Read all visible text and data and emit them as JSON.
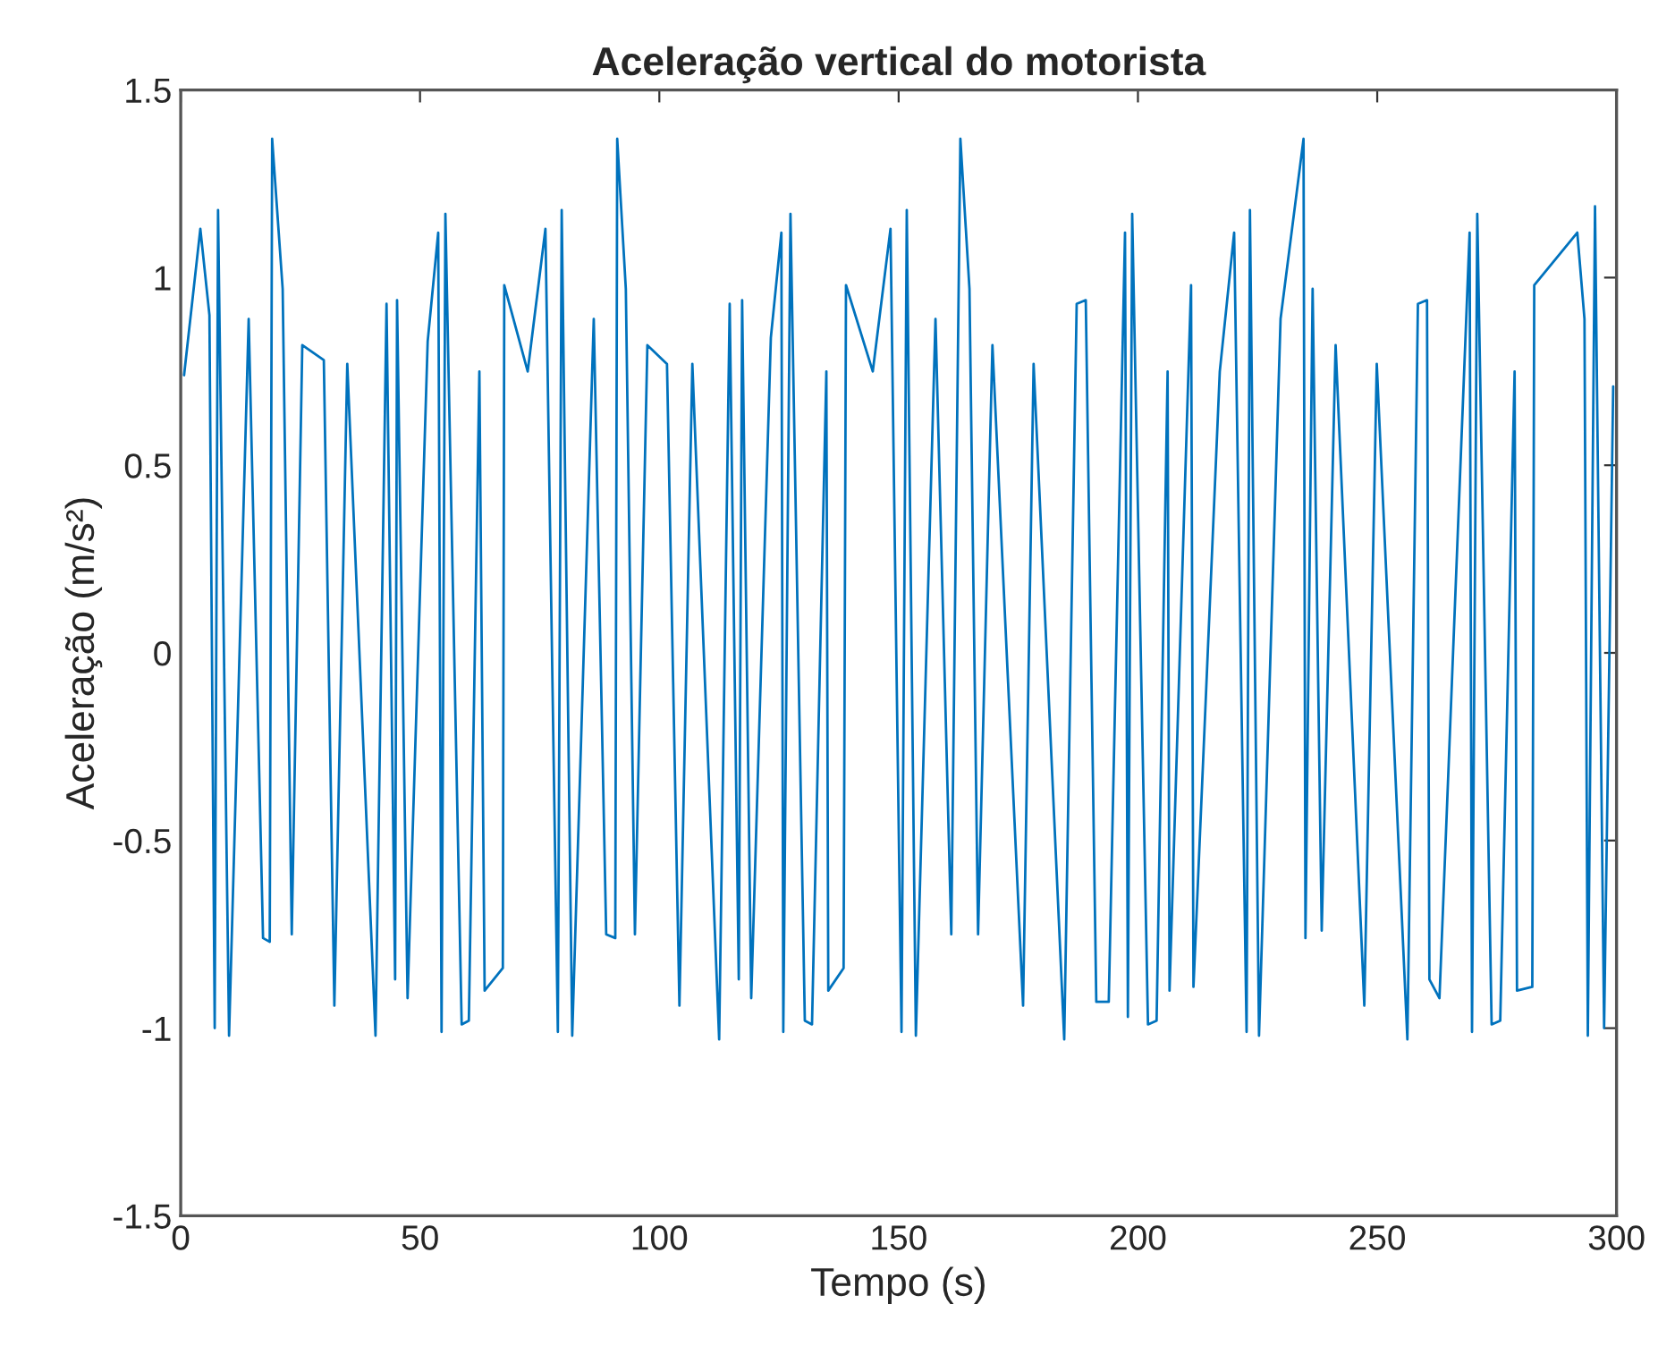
{
  "chart_data": {
    "type": "line",
    "title": "Aceleração vertical do motorista",
    "xlabel": "Tempo (s)",
    "ylabel": "Aceleração (m/s²)",
    "xlim": [
      0,
      300
    ],
    "xticks": [
      0,
      50,
      100,
      150,
      200,
      250,
      300
    ],
    "ylim": [
      -1.5,
      1.5
    ],
    "yticks": [
      -1.5,
      -1,
      -0.5,
      0,
      0.5,
      1,
      1.5
    ],
    "grid": false,
    "marker": "none",
    "line_style": "solid",
    "series": [
      {
        "color": "#0072bd",
        "x": [
          0.7,
          4.1,
          6.0,
          7.1,
          7.8,
          10.1,
          14.2,
          17.2,
          18.6,
          19.1,
          21.3,
          23.2,
          25.4,
          29.9,
          32.1,
          34.8,
          40.7,
          43.0,
          44.8,
          45.2,
          47.4,
          51.6,
          53.8,
          54.5,
          55.3,
          58.7,
          60.2,
          62.4,
          63.5,
          67.3,
          67.6,
          72.5,
          76.2,
          78.8,
          79.6,
          81.8,
          86.3,
          88.9,
          90.8,
          91.2,
          93.0,
          94.9,
          97.5,
          101.6,
          104.2,
          106.9,
          112.5,
          114.7,
          116.6,
          117.3,
          119.2,
          123.3,
          125.5,
          125.9,
          127.4,
          130.4,
          131.9,
          134.9,
          135.3,
          138.5,
          139.0,
          144.6,
          148.3,
          150.6,
          151.7,
          153.6,
          157.7,
          161.0,
          162.9,
          164.8,
          166.6,
          169.6,
          176.0,
          178.2,
          184.6,
          187.2,
          189.1,
          191.3,
          193.9,
          197.3,
          197.9,
          198.8,
          202.1,
          203.9,
          206.2,
          206.6,
          211.1,
          211.6,
          217.1,
          220.1,
          222.7,
          223.4,
          225.3,
          229.8,
          234.6,
          235.0,
          236.5,
          238.4,
          241.3,
          247.3,
          249.9,
          256.3,
          258.5,
          260.4,
          260.9,
          263.0,
          269.3,
          269.8,
          270.9,
          273.9,
          275.7,
          278.7,
          279.2,
          282.4,
          282.8,
          291.8,
          293.3,
          294.0,
          295.5,
          297.4,
          299.3
        ],
        "values": [
          0.74,
          1.13,
          0.9,
          -1.0,
          1.18,
          -1.02,
          0.89,
          -0.76,
          -0.77,
          1.37,
          0.97,
          -0.75,
          0.82,
          0.78,
          -0.94,
          0.77,
          -1.02,
          0.93,
          -0.87,
          0.94,
          -0.92,
          0.83,
          1.12,
          -1.01,
          1.17,
          -0.99,
          -0.98,
          0.75,
          -0.9,
          -0.84,
          0.98,
          0.75,
          1.13,
          -1.01,
          1.18,
          -1.02,
          0.89,
          -0.75,
          -0.76,
          1.37,
          0.97,
          -0.75,
          0.82,
          0.77,
          -0.94,
          0.77,
          -1.03,
          0.93,
          -0.87,
          0.94,
          -0.92,
          0.84,
          1.12,
          -1.01,
          1.17,
          -0.98,
          -0.99,
          0.75,
          -0.9,
          -0.84,
          0.98,
          0.75,
          1.13,
          -1.01,
          1.18,
          -1.02,
          0.89,
          -0.75,
          1.37,
          0.97,
          -0.75,
          0.82,
          -0.94,
          0.77,
          -1.03,
          0.93,
          0.94,
          -0.93,
          -0.93,
          1.12,
          -0.97,
          1.17,
          -0.99,
          -0.98,
          0.75,
          -0.9,
          0.98,
          -0.89,
          0.75,
          1.12,
          -1.01,
          1.18,
          -1.02,
          0.89,
          1.37,
          -0.76,
          0.97,
          -0.74,
          0.82,
          -0.94,
          0.77,
          -1.03,
          0.93,
          0.94,
          -0.87,
          -0.92,
          1.12,
          -1.01,
          1.17,
          -0.99,
          -0.98,
          0.75,
          -0.9,
          -0.89,
          0.98,
          1.12,
          0.89,
          -1.02,
          1.19,
          -1.0,
          0.71
        ]
      }
    ]
  }
}
